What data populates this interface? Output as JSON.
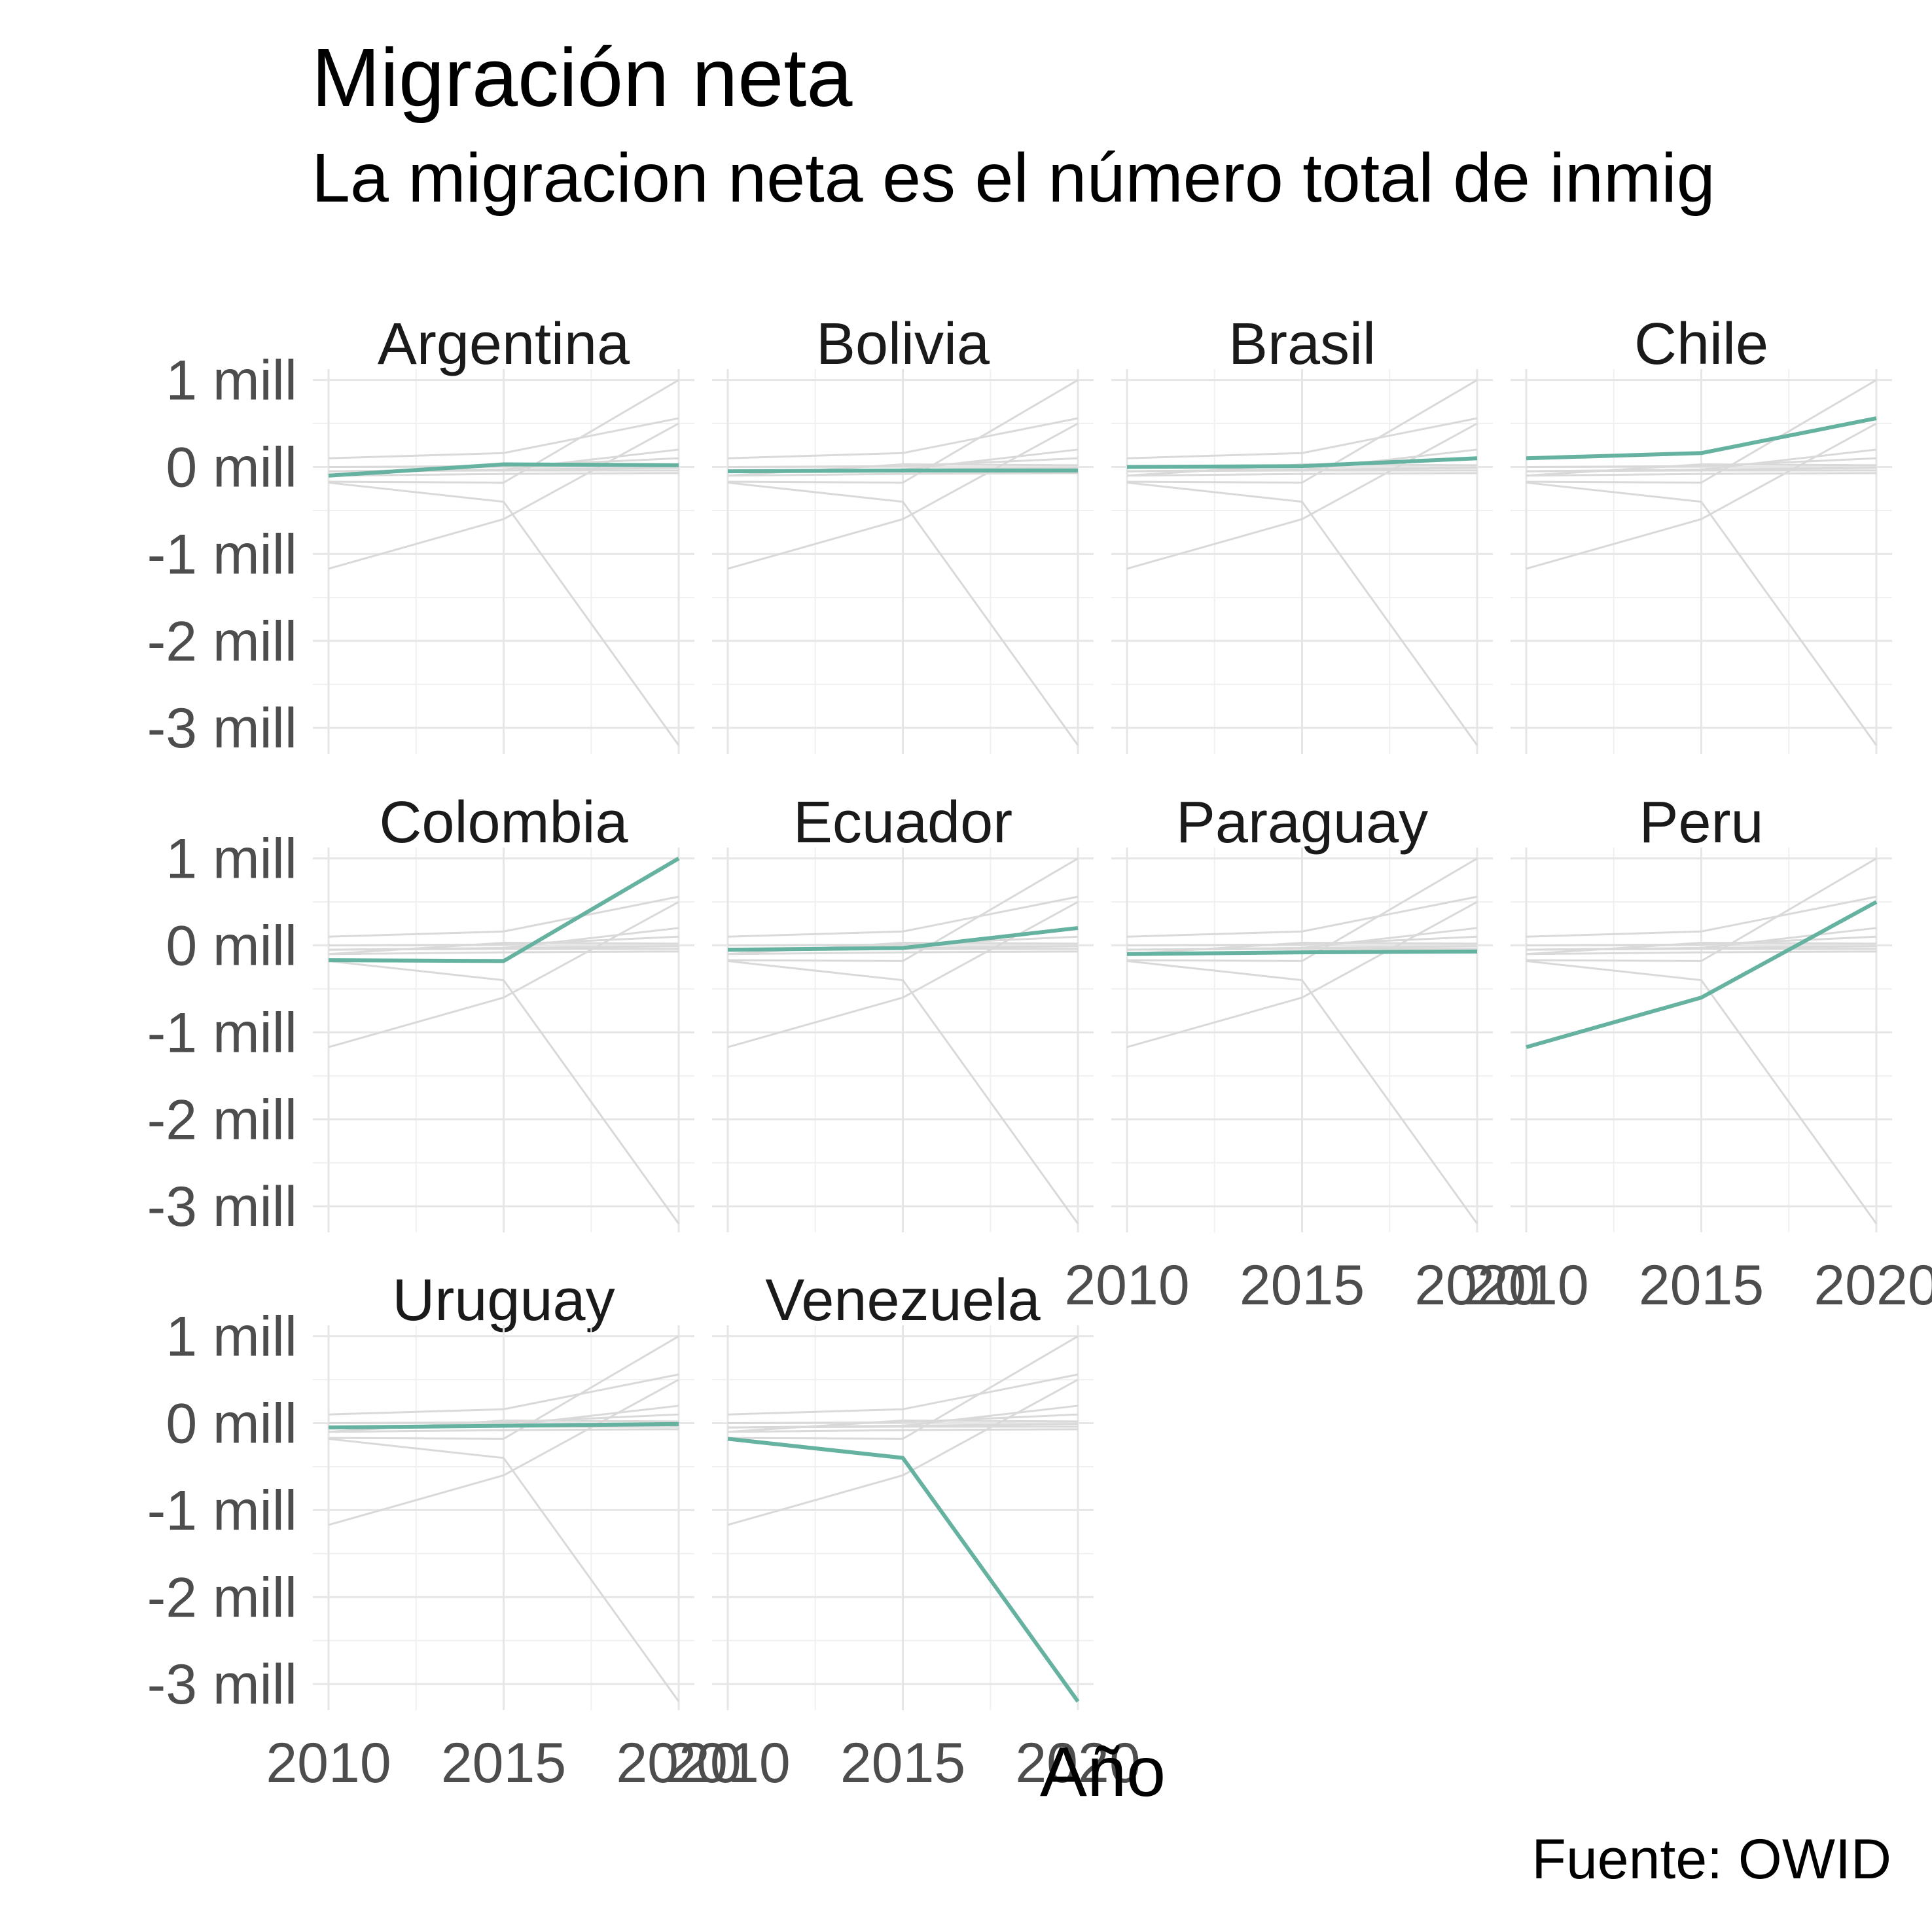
{
  "chart_data": {
    "type": "line",
    "title": "Migración neta",
    "subtitle": "La migracion neta es el número total de inmig",
    "xlabel": "Año",
    "ylabel": "",
    "caption": "Fuente: OWID",
    "x": [
      2010,
      2015,
      2020
    ],
    "xticks": [
      "2010",
      "2015",
      "2020"
    ],
    "ylim": [
      -3.3,
      1.05
    ],
    "yticks": [
      {
        "value": 1,
        "label": "1 mill"
      },
      {
        "value": 0,
        "label": "0 mill"
      },
      {
        "value": -1,
        "label": "-1 mill"
      },
      {
        "value": -2,
        "label": "-2 mill"
      },
      {
        "value": -3,
        "label": "-3 mill"
      }
    ],
    "grid": true,
    "highlight_color": "#66b2a0",
    "background_line_color": "#d9d9d9",
    "series": [
      {
        "name": "Argentina",
        "values": [
          -0.1,
          0.03,
          0.02
        ]
      },
      {
        "name": "Bolivia",
        "values": [
          -0.05,
          -0.04,
          -0.04
        ]
      },
      {
        "name": "Brasil",
        "values": [
          0.0,
          0.01,
          0.1
        ]
      },
      {
        "name": "Chile",
        "values": [
          0.1,
          0.16,
          0.56
        ]
      },
      {
        "name": "Colombia",
        "values": [
          -0.17,
          -0.18,
          1.0
        ]
      },
      {
        "name": "Ecuador",
        "values": [
          -0.05,
          -0.03,
          0.2
        ]
      },
      {
        "name": "Paraguay",
        "values": [
          -0.1,
          -0.08,
          -0.07
        ]
      },
      {
        "name": "Peru",
        "values": [
          -1.17,
          -0.6,
          0.5
        ]
      },
      {
        "name": "Uruguay",
        "values": [
          -0.05,
          -0.03,
          -0.01
        ]
      },
      {
        "name": "Venezuela",
        "values": [
          -0.18,
          -0.4,
          -3.2
        ]
      }
    ]
  }
}
